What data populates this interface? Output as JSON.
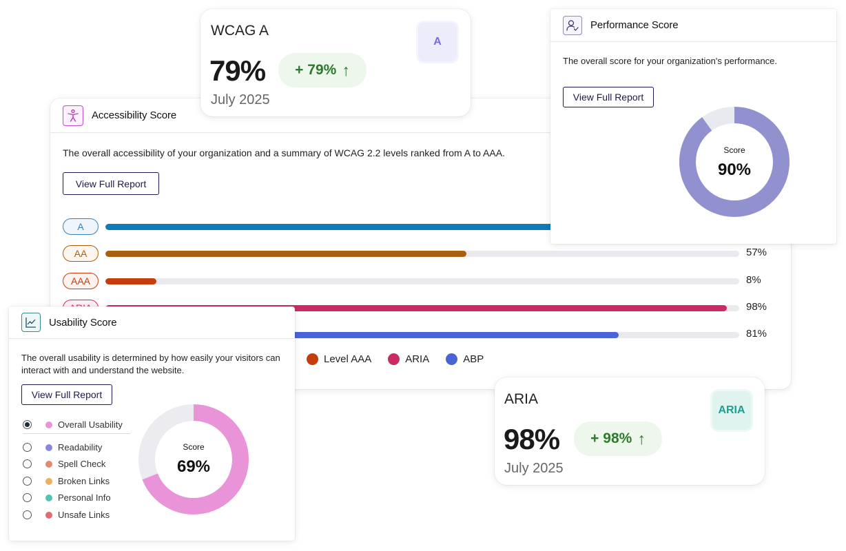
{
  "accessibility": {
    "title": "Accessibility Score",
    "icon": "accessibility-icon",
    "description": "The overall accessibility of your organization and a summary of WCAG 2.2 levels ranked from A to AAA.",
    "button": "View Full Report",
    "bars": [
      {
        "label": "A",
        "value": 79,
        "pct_text": "",
        "color": "#0f7bb8",
        "pill_color": "#3b7fb5",
        "pill_bg": "#eef5fb"
      },
      {
        "label": "AA",
        "value": 57,
        "pct_text": "57%",
        "color": "#a8600f",
        "pill_color": "#a8600f",
        "pill_bg": "#fdf6ee"
      },
      {
        "label": "AAA",
        "value": 8,
        "pct_text": "8%",
        "color": "#c53d0d",
        "pill_color": "#c53d0d",
        "pill_bg": "#fdf2ee"
      },
      {
        "label": "ARIA",
        "value": 98,
        "pct_text": "98%",
        "color": "#cc2a66",
        "pill_color": "#cc2a66",
        "pill_bg": "#fdeef4"
      },
      {
        "label": "",
        "value": 81,
        "pct_text": "81%",
        "color": "#4a63d6",
        "pill_color": "#4a63d6",
        "pill_bg": "#eef1fd"
      }
    ],
    "legend": [
      {
        "label": "Level AAA",
        "color": "#c53d0d"
      },
      {
        "label": "ARIA",
        "color": "#cc2a66"
      },
      {
        "label": "ABP",
        "color": "#4a63d6"
      }
    ]
  },
  "wcag_card": {
    "title": "WCAG A",
    "value": "79%",
    "change": "+ 79%",
    "change_arrow": "↑",
    "date": "July 2025",
    "badge": "A",
    "badge_color": "#7b6be0",
    "badge_bg": "#ececfb"
  },
  "performance": {
    "title": "Performance Score",
    "icon": "user-check-icon",
    "description": "The overall score for your organization's performance.",
    "button": "View Full Report",
    "score_label": "Score",
    "score_text": "90%",
    "score": 90,
    "color": "#9191d0",
    "track_color": "#e9e9f0"
  },
  "usability": {
    "title": "Usability Score",
    "icon": "trend-chart-icon",
    "description_line1": "The overall usability is determined by how easily your visitors can",
    "description_line2": "interact with and understand the website.",
    "button": "View Full Report",
    "score_label": "Score",
    "score_text": "69%",
    "score": 69,
    "color": "#e994d8",
    "track_color": "#ebebf0",
    "items": [
      {
        "label": "Overall Usability",
        "color": "#e994d8",
        "selected": true
      },
      {
        "label": "Readability",
        "color": "#8b86dc",
        "selected": false
      },
      {
        "label": "Spell Check",
        "color": "#e58a70",
        "selected": false
      },
      {
        "label": "Broken Links",
        "color": "#ebb063",
        "selected": false
      },
      {
        "label": "Personal Info",
        "color": "#4fc3b5",
        "selected": false
      },
      {
        "label": "Unsafe Links",
        "color": "#e26b72",
        "selected": false
      }
    ]
  },
  "aria_card": {
    "title": "ARIA",
    "value": "98%",
    "change": "+ 98%",
    "change_arrow": "↑",
    "date": "July 2025",
    "badge": "ARIA",
    "badge_color": "#1f9e92",
    "badge_bg": "#dff3ef"
  }
}
